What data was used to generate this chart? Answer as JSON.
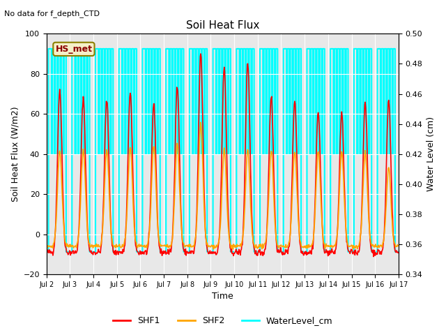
{
  "title": "Soil Heat Flux",
  "subtitle": "No data for f_depth_CTD",
  "xlabel": "Time",
  "ylabel_left": "Soil Heat Flux (W/m2)",
  "ylabel_right": "Water Level (cm)",
  "ylim_left": [
    -20,
    100
  ],
  "ylim_right": [
    0.34,
    0.5
  ],
  "yticks_left": [
    -20,
    0,
    20,
    40,
    60,
    80,
    100
  ],
  "yticks_right": [
    0.34,
    0.36,
    0.38,
    0.4,
    0.42,
    0.44,
    0.46,
    0.48,
    0.5
  ],
  "xtick_labels": [
    "Jul 2",
    "Jul 3",
    "Jul 4",
    "Jul 5",
    "Jul 6",
    "Jul 7",
    "Jul 8",
    "Jul 9",
    "Jul 10",
    "Jul 11",
    "Jul 12",
    "Jul 13",
    "Jul 14",
    "Jul 15",
    "Jul 16",
    "Jul 17"
  ],
  "shf1_color": "#FF0000",
  "shf2_color": "#FFA500",
  "water_color": "#00FFFF",
  "background_color": "#E8E8E8",
  "legend_box_facecolor": "#F5F0C8",
  "legend_box_edgecolor": "#8B8000",
  "legend_box_text": "HS_met",
  "legend_box_text_color": "#8B0000",
  "grid_color": "#FFFFFF",
  "water_high": 0.49,
  "water_mid": 0.42,
  "water_low": 0.355,
  "peaks_shf1": [
    72,
    68,
    67,
    71,
    65,
    74,
    90,
    83,
    86,
    69,
    67,
    61,
    60,
    65,
    67
  ],
  "peaks_shf2": [
    42,
    42,
    42,
    43,
    44,
    45,
    55,
    42,
    42,
    42,
    41,
    41,
    41,
    41,
    33
  ],
  "n_days": 15,
  "shf1_lw": 1.2,
  "shf2_lw": 1.2,
  "water_lw": 1.5
}
